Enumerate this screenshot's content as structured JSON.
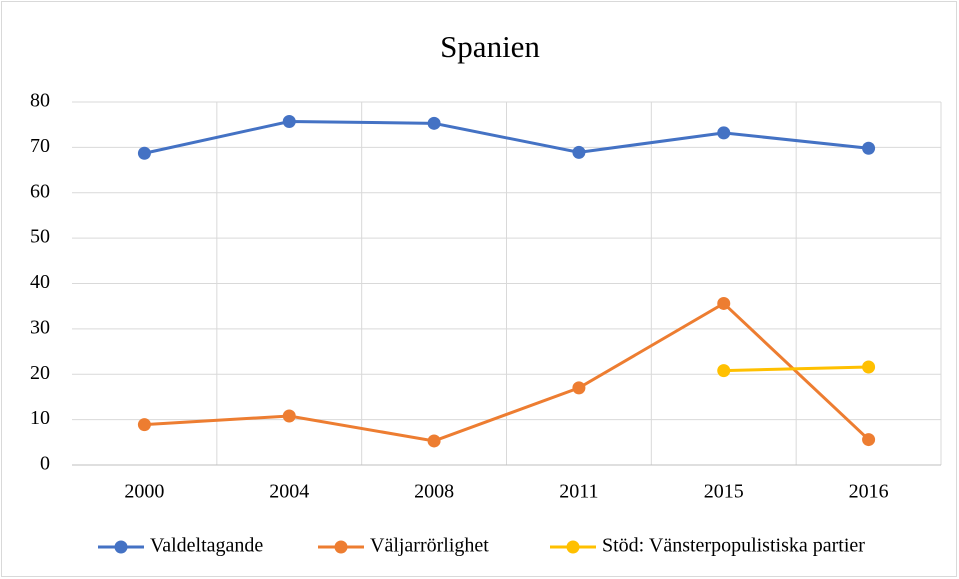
{
  "chart_data": {
    "type": "line",
    "title": "Spanien",
    "categories": [
      "2000",
      "2004",
      "2008",
      "2011",
      "2015",
      "2016"
    ],
    "series": [
      {
        "name": "Valdeltagande",
        "color": "#4472c4",
        "values": [
          68.7,
          75.7,
          75.3,
          68.9,
          73.2,
          69.8
        ]
      },
      {
        "name": "Väljarrörlighet",
        "color": "#ed7d31",
        "values": [
          8.9,
          10.8,
          5.3,
          17.0,
          35.6,
          5.6
        ]
      },
      {
        "name": "Stöd: Vänsterpopulistiska partier",
        "color": "#ffc000",
        "values": [
          null,
          null,
          null,
          null,
          20.8,
          21.6
        ]
      }
    ],
    "ylim": [
      0,
      80
    ],
    "yticks": [
      0,
      10,
      20,
      30,
      40,
      50,
      60,
      70,
      80
    ],
    "grid": true,
    "legend": "bottom"
  }
}
